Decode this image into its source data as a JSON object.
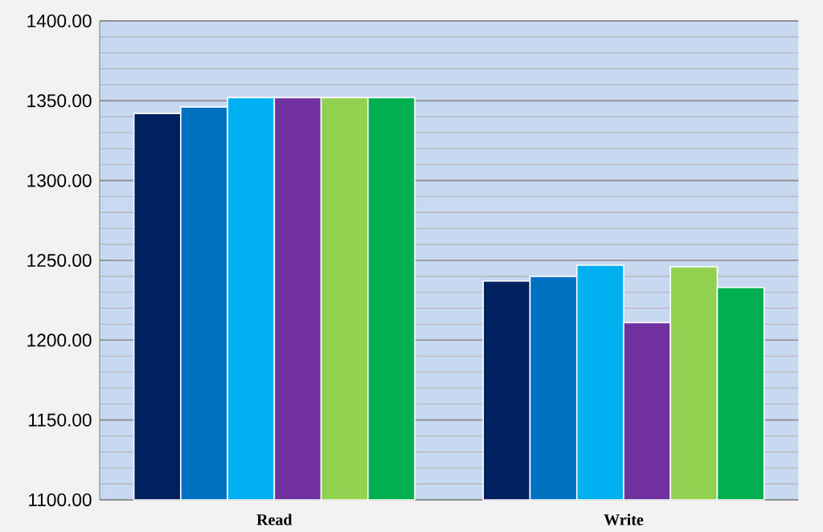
{
  "chart_data": {
    "type": "bar",
    "categories": [
      "Read",
      "Write"
    ],
    "series": [
      {
        "color": "#002060",
        "values": [
          1342,
          1237
        ]
      },
      {
        "color": "#0070c0",
        "values": [
          1346,
          1240
        ]
      },
      {
        "color": "#00b0f0",
        "values": [
          1352,
          1247
        ]
      },
      {
        "color": "#7030a0",
        "values": [
          1352,
          1211
        ]
      },
      {
        "color": "#92d050",
        "values": [
          1352,
          1246
        ]
      },
      {
        "color": "#00b050",
        "values": [
          1352,
          1233
        ]
      }
    ],
    "ylim": [
      1100,
      1400
    ],
    "yticks": [
      {
        "value": 1100,
        "label": "1100.00"
      },
      {
        "value": 1150,
        "label": "1150.00"
      },
      {
        "value": 1200,
        "label": "1200.00"
      },
      {
        "value": 1250,
        "label": "1250.00"
      },
      {
        "value": 1300,
        "label": "1300.00"
      },
      {
        "value": 1350,
        "label": "1350.00"
      },
      {
        "value": 1400,
        "label": "1400.00"
      }
    ],
    "grid": "y"
  }
}
